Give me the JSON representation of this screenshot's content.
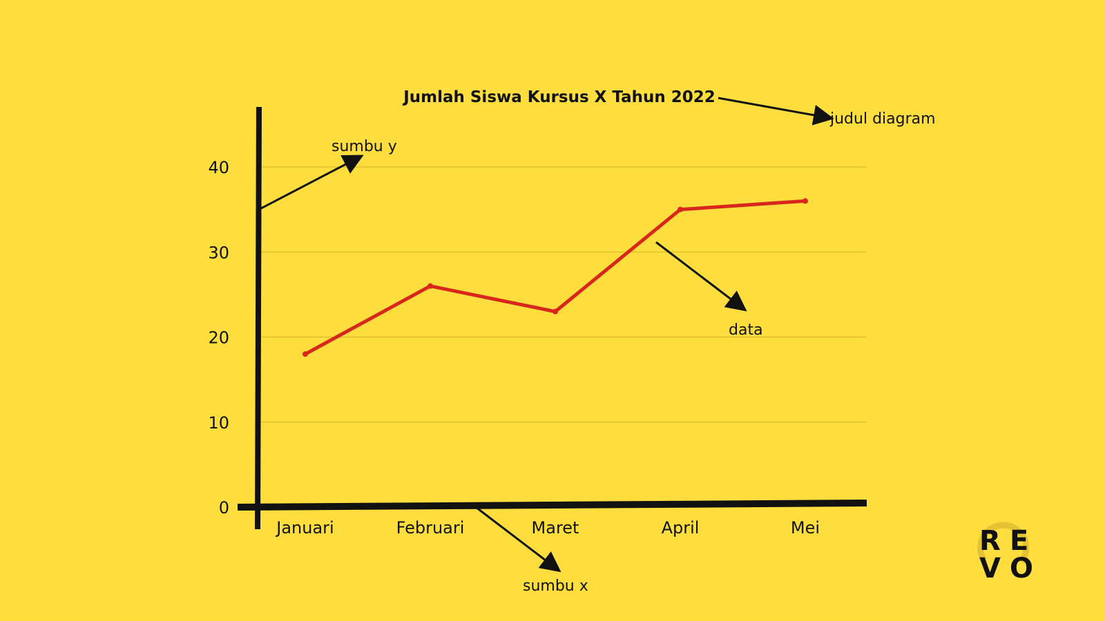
{
  "colors": {
    "background": "#FDDE3E",
    "line": "#D9261C",
    "axis": "#111111",
    "grid": "#D4B62A"
  },
  "chart_data": {
    "type": "line",
    "title": "Jumlah Siswa  Kursus X Tahun 2022",
    "xlabel": "",
    "ylabel": "",
    "categories": [
      "Januari",
      "Februari",
      "Maret",
      "April",
      "Mei"
    ],
    "series": [
      {
        "values": [
          18,
          26,
          23,
          35,
          36
        ]
      }
    ],
    "ylim": [
      0,
      40
    ],
    "yticks": [
      0,
      10,
      20,
      30,
      40
    ],
    "grid": true,
    "legend": "none"
  },
  "annotations": {
    "title_label": "judul diagram",
    "y_axis_label": "sumbu y",
    "x_axis_label": "sumbu x",
    "data_label": "data"
  },
  "logo": {
    "letters": [
      "R",
      "E",
      "V",
      "O"
    ]
  }
}
